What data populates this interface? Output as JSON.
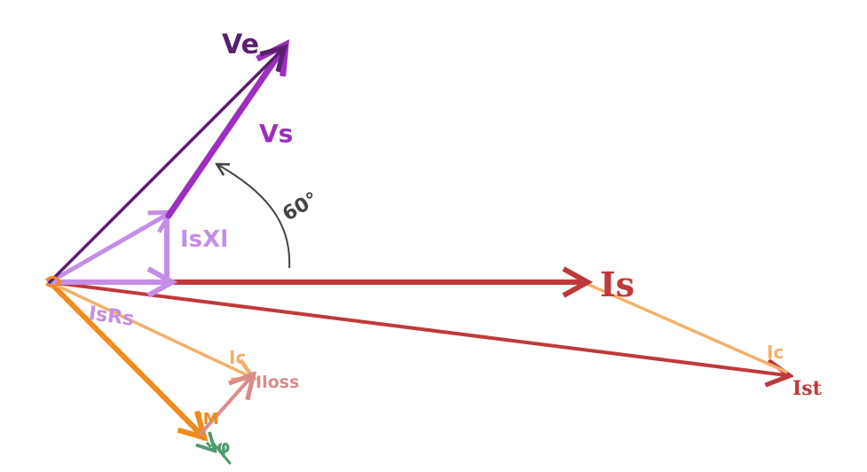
{
  "colors": {
    "ve": "#5b1f6e",
    "vs": "#9b30c0",
    "lilac": "#c58ee6",
    "is": "#c0393b",
    "ic": "#f5b06a",
    "iloss": "#d98c8c",
    "im": "#f28a1c",
    "phi": "#4f9a6e",
    "angle": "#444444"
  },
  "labels": {
    "ve": "Ve",
    "vs": "Vs",
    "isxl": "IsXl",
    "angle": "60°",
    "is": "Is",
    "isrs": "IsRs",
    "ic_left": "Ic",
    "iloss": "Iloss",
    "im": "IM",
    "phi": "φ",
    "ic_right": "Ic",
    "ist": "Ist"
  },
  "icons": {
    "arrowhead": "arrowhead-icon"
  }
}
